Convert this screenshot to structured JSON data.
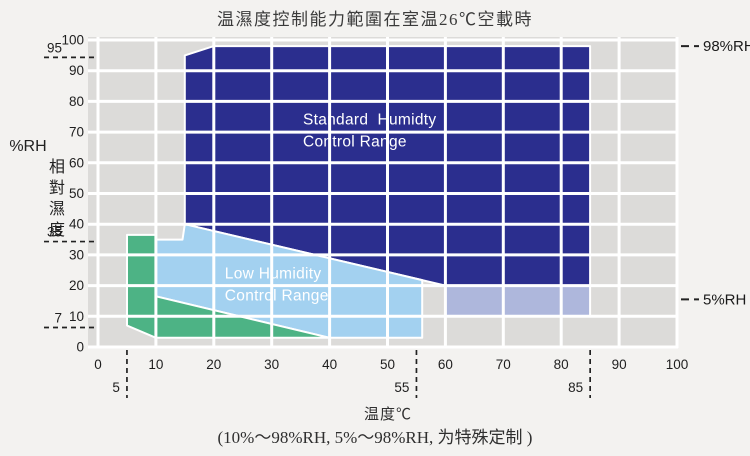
{
  "title": "温濕度控制能力範圍在室温26℃空載時",
  "footnote": "(10%～98%RH, 5%～98%RH, 为特殊定制 )",
  "y_axis": {
    "unit": "%RH",
    "name_cjk": "相對濕度",
    "ticks": [
      0,
      10,
      20,
      30,
      40,
      50,
      60,
      70,
      80,
      90,
      100
    ],
    "special_marks": [
      95,
      35,
      7
    ]
  },
  "x_axis": {
    "title": "温度℃",
    "ticks": [
      0,
      10,
      20,
      30,
      40,
      50,
      60,
      70,
      80,
      90,
      100
    ],
    "special_marks": [
      5,
      55,
      85
    ]
  },
  "right_annotations": [
    {
      "label": "98%RH",
      "rh": 98
    },
    {
      "label": "5%RH",
      "rh": 15.5
    }
  ],
  "colors": {
    "page_bg": "#f3f2f0",
    "plot_bg": "#dcdbd9",
    "grid": "#ffffff",
    "navy": "#2b2e8e",
    "light_blue": "#a3d1f0",
    "green": "#4db385",
    "periwinkle": "#aeb7dc",
    "dash": "#222222"
  },
  "chart_data": {
    "type": "area",
    "title": "温濕度控制能力範圍在室温26℃空載時",
    "xlabel": "温度℃",
    "ylabel": "%RH 相對濕度",
    "xlim": [
      0,
      100
    ],
    "ylim": [
      0,
      100
    ],
    "grid": true,
    "regions": [
      {
        "id": "standard-humidity-control-range",
        "label_lines": [
          "Standard  Humidty",
          "Control Range"
        ],
        "label_anchor": [
          35.4,
          77
        ],
        "color_key": "navy",
        "points": [
          [
            15,
            40
          ],
          [
            15,
            95
          ],
          [
            20,
            98
          ],
          [
            85,
            98
          ],
          [
            85,
            20
          ],
          [
            60,
            20
          ]
        ]
      },
      {
        "id": "special-5rh-band",
        "label_lines": [],
        "label_anchor": null,
        "color_key": "periwinkle",
        "points": [
          [
            60,
            20
          ],
          [
            85,
            20
          ],
          [
            85,
            10
          ],
          [
            60,
            10
          ]
        ]
      },
      {
        "id": "low-humidity-control-range",
        "label_lines": [
          "Low Humidity",
          "Control Range"
        ],
        "label_anchor": [
          21.9,
          26.8
        ],
        "color_key": "light_blue",
        "points": [
          [
            10,
            35
          ],
          [
            14.6,
            35
          ],
          [
            15,
            40
          ],
          [
            56,
            21.8
          ],
          [
            56,
            3
          ],
          [
            40,
            3
          ],
          [
            10,
            16.5
          ]
        ]
      },
      {
        "id": "low-humidity-green-range",
        "label_lines": [],
        "label_anchor": null,
        "color_key": "green",
        "points": [
          [
            5,
            36.5
          ],
          [
            10,
            36.5
          ],
          [
            10,
            16.5
          ],
          [
            40,
            3
          ],
          [
            10,
            3
          ],
          [
            5,
            7
          ]
        ]
      }
    ]
  }
}
